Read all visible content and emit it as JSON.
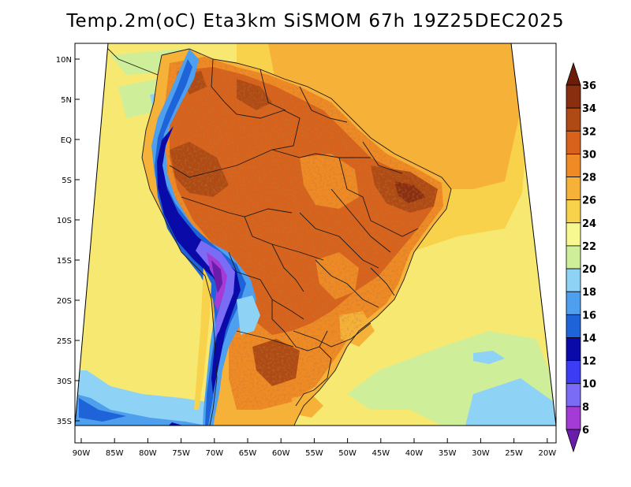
{
  "title": "Temp.2m(oC) Eta3km SiSMOM 67h 19Z25DEC2025",
  "map": {
    "variable": "2 m air temperature",
    "units": "oC",
    "region": "South America",
    "lat_labels": [
      "10N",
      "5N",
      "EQ",
      "5S",
      "10S",
      "15S",
      "20S",
      "25S",
      "30S",
      "35S"
    ],
    "lon_labels": [
      "90W",
      "85W",
      "80W",
      "75W",
      "70W",
      "65W",
      "60W",
      "55W",
      "50W",
      "45W",
      "40W",
      "35W",
      "30W",
      "25W",
      "20W"
    ]
  },
  "colorbar": {
    "levels": [
      "6",
      "8",
      "10",
      "12",
      "14",
      "16",
      "18",
      "20",
      "22",
      "24",
      "26",
      "28",
      "30",
      "32",
      "34",
      "36"
    ],
    "colors": [
      "#6a1cab",
      "#a53bd6",
      "#7a6cf5",
      "#3c3cf5",
      "#0a0aa8",
      "#1e64d8",
      "#4ea0ee",
      "#8ed2f5",
      "#cfee9a",
      "#f8f890",
      "#f8d24a",
      "#f6b238",
      "#f08a24",
      "#d8621c",
      "#b04a14",
      "#8a2e10",
      "#6a1e0a"
    ]
  }
}
